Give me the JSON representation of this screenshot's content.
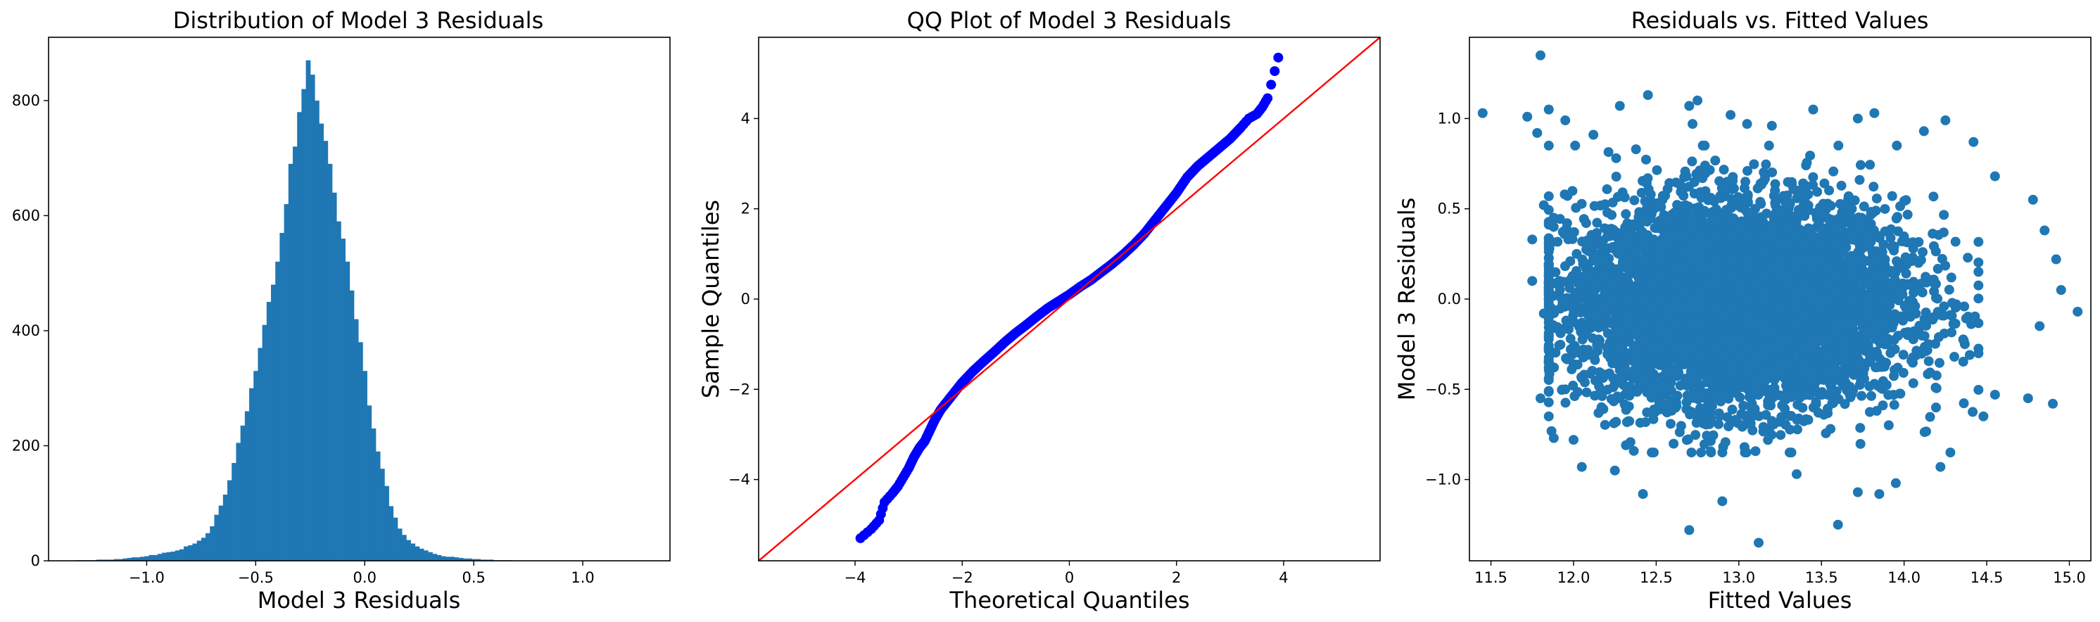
{
  "figure": {
    "background": "#ffffff"
  },
  "chart_data": [
    {
      "type": "bar",
      "subtype": "histogram",
      "title": "Distribution of Model 3 Residuals",
      "xlabel": "Model 3 Residuals",
      "ylabel": "",
      "xlim": [
        -1.45,
        1.4
      ],
      "ylim": [
        0,
        910
      ],
      "xticks": [
        -1.0,
        -0.5,
        0.0,
        0.5,
        1.0
      ],
      "xtick_labels": [
        "−1.0",
        "−0.5",
        "0.0",
        "0.5",
        "1.0"
      ],
      "yticks": [
        0,
        200,
        400,
        600,
        800
      ],
      "ytick_labels": [
        "0",
        "200",
        "400",
        "600",
        "800"
      ],
      "grid": false,
      "color": "#1f77b4",
      "bin_start": -1.33,
      "bin_width": 0.02,
      "values": [
        1,
        1,
        1,
        1,
        1,
        2,
        2,
        2,
        2,
        3,
        3,
        4,
        5,
        6,
        6,
        7,
        8,
        10,
        10,
        12,
        14,
        15,
        16,
        18,
        20,
        25,
        27,
        30,
        35,
        40,
        48,
        60,
        80,
        96,
        115,
        140,
        170,
        205,
        235,
        260,
        300,
        330,
        370,
        410,
        450,
        480,
        520,
        570,
        620,
        690,
        720,
        780,
        820,
        870,
        845,
        800,
        760,
        730,
        690,
        640,
        590,
        560,
        520,
        470,
        420,
        380,
        330,
        270,
        230,
        190,
        160,
        130,
        95,
        75,
        56,
        45,
        36,
        30,
        25,
        21,
        18,
        15,
        12,
        10,
        8,
        7,
        7,
        6,
        5,
        4,
        4,
        3,
        3,
        2,
        2,
        2,
        1,
        1,
        1,
        1
      ]
    },
    {
      "type": "scatter",
      "subtype": "qq-plot",
      "title": "QQ Plot of Model 3 Residuals",
      "xlabel": "Theoretical Quantiles",
      "ylabel": "Sample Quantiles",
      "xlim": [
        -5.8,
        5.8
      ],
      "ylim": [
        -5.8,
        5.8
      ],
      "xticks": [
        -4,
        -2,
        0,
        2,
        4
      ],
      "xtick_labels": [
        "−4",
        "−2",
        "0",
        "2",
        "4"
      ],
      "yticks": [
        -4,
        -2,
        0,
        2,
        4
      ],
      "ytick_labels": [
        "−4",
        "−2",
        "0",
        "2",
        "4"
      ],
      "grid": false,
      "point_color": "#0000ff",
      "line_color": "#ff0000",
      "reference_line": {
        "slope": 1,
        "intercept": 0
      },
      "x": [
        -3.9,
        -3.7,
        -3.55,
        -3.45,
        -3.3,
        -3.2,
        -3.1,
        -3.0,
        -2.9,
        -2.8,
        -2.7,
        -2.6,
        -2.5,
        -2.4,
        -2.3,
        -2.2,
        -2.1,
        -2.0,
        -1.8,
        -1.6,
        -1.4,
        -1.2,
        -1.0,
        -0.8,
        -0.6,
        -0.4,
        -0.2,
        0.0,
        0.2,
        0.4,
        0.6,
        0.8,
        1.0,
        1.2,
        1.4,
        1.6,
        1.8,
        2.0,
        2.2,
        2.4,
        2.6,
        2.8,
        3.0,
        3.2,
        3.35,
        3.5,
        3.6,
        3.7,
        3.9
      ],
      "y": [
        -5.3,
        -5.1,
        -4.9,
        -4.5,
        -4.3,
        -4.15,
        -3.95,
        -3.75,
        -3.5,
        -3.3,
        -3.15,
        -2.9,
        -2.65,
        -2.45,
        -2.3,
        -2.15,
        -2.0,
        -1.85,
        -1.6,
        -1.38,
        -1.17,
        -0.95,
        -0.75,
        -0.57,
        -0.38,
        -0.2,
        -0.05,
        0.1,
        0.27,
        0.42,
        0.6,
        0.78,
        0.98,
        1.2,
        1.45,
        1.75,
        2.05,
        2.35,
        2.7,
        2.95,
        3.15,
        3.35,
        3.55,
        3.8,
        4.0,
        4.1,
        4.25,
        4.45,
        5.35
      ]
    },
    {
      "type": "scatter",
      "title": "Residuals vs. Fitted Values",
      "xlabel": "Fitted Values",
      "ylabel": "Model 3 Residuals",
      "xlim": [
        11.37,
        15.13
      ],
      "ylim": [
        -1.45,
        1.45
      ],
      "xticks": [
        11.5,
        12.0,
        12.5,
        13.0,
        13.5,
        14.0,
        14.5,
        15.0
      ],
      "xtick_labels": [
        "11.5",
        "12.0",
        "12.5",
        "13.0",
        "13.5",
        "14.0",
        "14.5",
        "15.0"
      ],
      "yticks": [
        -1.0,
        -0.5,
        0.0,
        0.5,
        1.0
      ],
      "ytick_labels": [
        "−1.0",
        "−0.5",
        "0.0",
        "0.5",
        "1.0"
      ],
      "grid": false,
      "point_color": "#1f77b4",
      "points": [
        [
          11.45,
          1.03
        ],
        [
          11.72,
          1.01
        ],
        [
          11.8,
          1.35
        ],
        [
          11.85,
          1.05
        ],
        [
          11.78,
          0.92
        ],
        [
          11.82,
          0.52
        ],
        [
          11.88,
          0.45
        ],
        [
          11.75,
          0.33
        ],
        [
          11.95,
          0.99
        ],
        [
          12.12,
          0.91
        ],
        [
          12.28,
          1.07
        ],
        [
          12.45,
          1.13
        ],
        [
          12.7,
          1.07
        ],
        [
          12.75,
          1.1
        ],
        [
          12.72,
          0.97
        ],
        [
          12.95,
          1.02
        ],
        [
          13.05,
          0.97
        ],
        [
          13.2,
          0.96
        ],
        [
          13.45,
          1.05
        ],
        [
          13.72,
          1.0
        ],
        [
          13.82,
          1.03
        ],
        [
          14.12,
          0.93
        ],
        [
          14.25,
          0.99
        ],
        [
          14.42,
          0.87
        ],
        [
          14.55,
          0.68
        ],
        [
          14.78,
          0.55
        ],
        [
          14.85,
          0.38
        ],
        [
          14.92,
          0.22
        ],
        [
          15.05,
          -0.07
        ],
        [
          14.95,
          0.05
        ],
        [
          14.82,
          -0.15
        ],
        [
          14.9,
          -0.58
        ],
        [
          14.75,
          -0.55
        ],
        [
          14.55,
          -0.53
        ],
        [
          14.48,
          -0.65
        ],
        [
          14.22,
          -0.93
        ],
        [
          13.95,
          -1.02
        ],
        [
          13.85,
          -1.08
        ],
        [
          13.72,
          -1.07
        ],
        [
          13.6,
          -1.25
        ],
        [
          13.35,
          -0.97
        ],
        [
          13.12,
          -1.35
        ],
        [
          12.9,
          -1.12
        ],
        [
          12.7,
          -1.28
        ],
        [
          12.42,
          -1.08
        ],
        [
          12.25,
          -0.95
        ],
        [
          12.05,
          -0.93
        ],
        [
          12.0,
          -0.78
        ],
        [
          11.85,
          -0.65
        ],
        [
          11.8,
          -0.55
        ],
        [
          11.75,
          0.1
        ],
        [
          11.82,
          -0.08
        ],
        [
          11.88,
          -0.15
        ]
      ],
      "cloud": {
        "x_center": 13.0,
        "y_center": -0.02,
        "x_sd": 0.5,
        "y_sd": 0.28,
        "count": 6000
      }
    }
  ]
}
